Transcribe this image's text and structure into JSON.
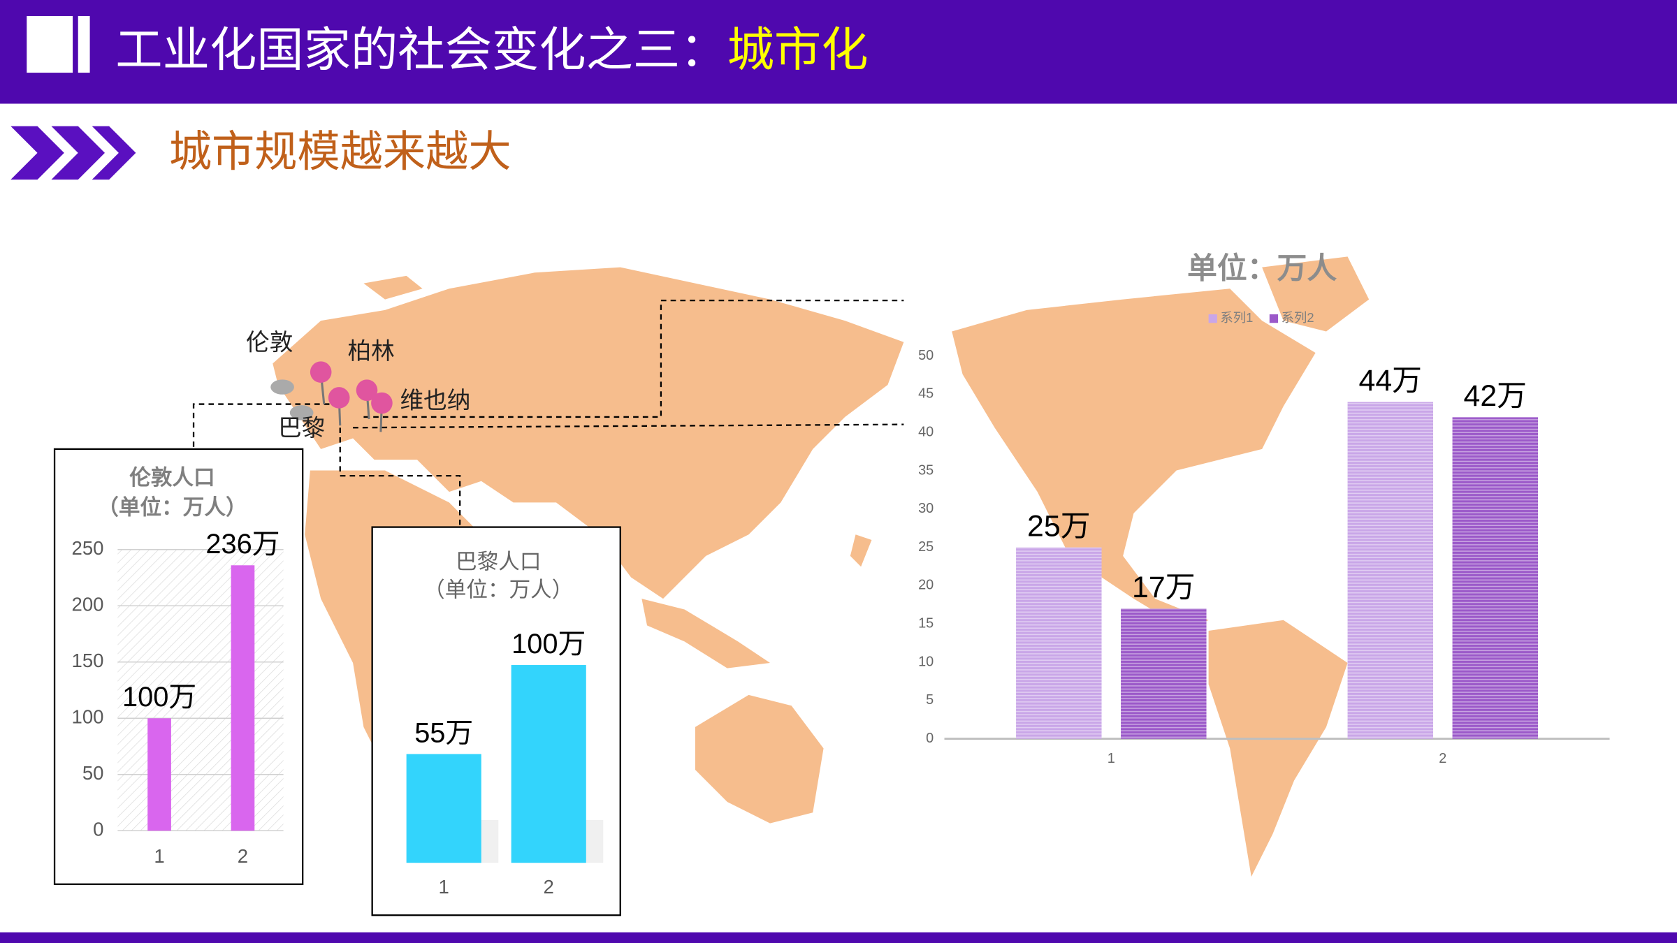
{
  "slide": {
    "title": "工业化国家的社会变化之三：",
    "title_highlight": "城市化",
    "subtitle": "城市规模越来越大",
    "cities": [
      "伦敦",
      "柏林",
      "维也纳",
      "巴黎"
    ]
  },
  "chart_data": [
    {
      "type": "bar",
      "title": "伦敦人口",
      "subtitle": "（单位：万人）",
      "categories": [
        "1",
        "2"
      ],
      "values": [
        100,
        236
      ],
      "value_labels": [
        "100万",
        "236万"
      ],
      "color": "#d966ee",
      "ylim": [
        0,
        250
      ],
      "yticks": [
        0,
        50,
        100,
        150,
        200,
        250
      ],
      "grid": true
    },
    {
      "type": "bar",
      "title": "巴黎人口",
      "subtitle": "（单位：万人）",
      "categories": [
        "1",
        "2"
      ],
      "values": [
        55,
        100
      ],
      "value_labels": [
        "55万",
        "100万"
      ],
      "color": "#33d4fc"
    },
    {
      "type": "bar",
      "title": "单位：万人",
      "categories": [
        "1",
        "2"
      ],
      "series": [
        {
          "name": "系列1",
          "color": "#c9a6e8",
          "values": [
            25,
            44
          ],
          "value_labels": [
            "25万",
            "44万"
          ]
        },
        {
          "name": "系列2",
          "color": "#9b59c9",
          "values": [
            17,
            42
          ],
          "value_labels": [
            "17万",
            "42万"
          ]
        }
      ],
      "ylim": [
        0,
        50
      ],
      "yticks": [
        0,
        5,
        10,
        15,
        20,
        25,
        30,
        35,
        40,
        45,
        50
      ],
      "grid": false,
      "legend": "top"
    }
  ]
}
